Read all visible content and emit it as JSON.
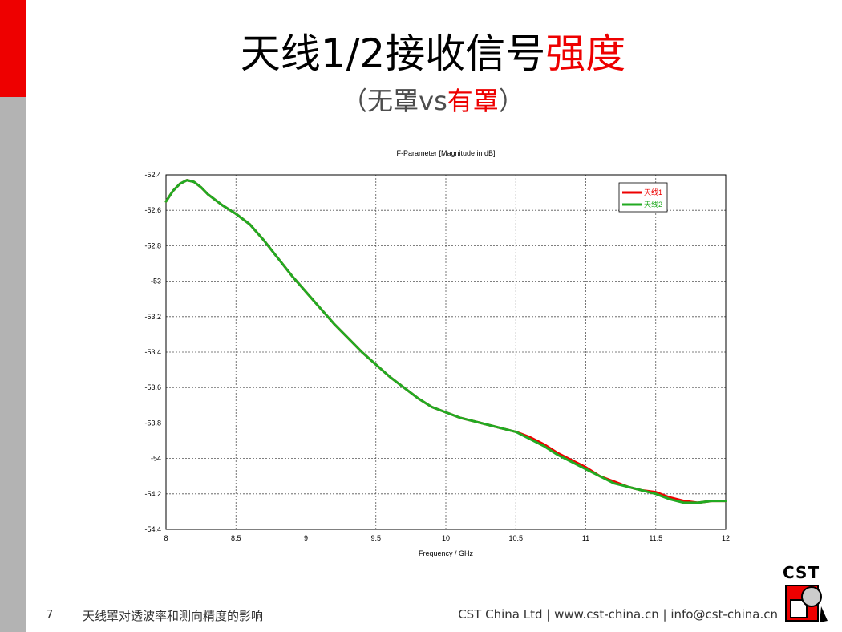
{
  "slide": {
    "title_main": "天线1/2接收信号",
    "title_highlight": "强度",
    "subtitle_open": "（",
    "subtitle_plain": "无罩vs",
    "subtitle_highlight": "有罩",
    "subtitle_close": "）",
    "page_number": "7",
    "footer_left": "天线罩对透波率和测向精度的影响",
    "footer_right": "CST China Ltd | www.cst-china.cn | info@cst-china.cn",
    "logo_text": "CST"
  },
  "colors": {
    "accent_red": "#ee0000",
    "sidebar_gray": "#b3b3b3",
    "series_1": "#ee0000",
    "series_2": "#22aa22"
  },
  "chart_data": {
    "type": "line",
    "title": "F-Parameter [Magnitude in dB]",
    "xlabel": "Frequency / GHz",
    "ylabel": "",
    "xlim": [
      8,
      12
    ],
    "ylim": [
      -54.4,
      -52.4
    ],
    "xticks": [
      8,
      8.5,
      9,
      9.5,
      10,
      10.5,
      11,
      11.5,
      12
    ],
    "xtick_labels": [
      "8",
      "8.5",
      "9",
      "9.5",
      "10",
      "10.5",
      "11",
      "11.5",
      "12"
    ],
    "yticks": [
      -52.4,
      -52.6,
      -52.8,
      -53,
      -53.2,
      -53.4,
      -53.6,
      -53.8,
      -54,
      -54.2,
      -54.4
    ],
    "ytick_labels": [
      "-52.4",
      "-52.6",
      "-52.8",
      "-53",
      "-53.2",
      "-53.4",
      "-53.6",
      "-53.8",
      "-54",
      "-54.2",
      "-54.4"
    ],
    "grid": true,
    "legend_position": "top-right",
    "series": [
      {
        "name": "天线1",
        "color": "#ee0000",
        "x": [
          8.0,
          8.05,
          8.1,
          8.15,
          8.2,
          8.25,
          8.3,
          8.4,
          8.5,
          8.6,
          8.7,
          8.8,
          8.9,
          9.0,
          9.1,
          9.2,
          9.3,
          9.4,
          9.5,
          9.6,
          9.7,
          9.8,
          9.9,
          10.0,
          10.1,
          10.2,
          10.3,
          10.4,
          10.5,
          10.6,
          10.7,
          10.8,
          10.9,
          11.0,
          11.1,
          11.2,
          11.3,
          11.4,
          11.5,
          11.6,
          11.7,
          11.8,
          11.9,
          12.0
        ],
        "y": [
          -52.55,
          -52.49,
          -52.45,
          -52.43,
          -52.44,
          -52.47,
          -52.51,
          -52.57,
          -52.62,
          -52.68,
          -52.77,
          -52.87,
          -52.97,
          -53.06,
          -53.15,
          -53.24,
          -53.32,
          -53.4,
          -53.47,
          -53.54,
          -53.6,
          -53.66,
          -53.71,
          -53.74,
          -53.77,
          -53.79,
          -53.81,
          -53.83,
          -53.85,
          -53.88,
          -53.92,
          -53.97,
          -54.01,
          -54.05,
          -54.1,
          -54.13,
          -54.16,
          -54.18,
          -54.19,
          -54.22,
          -54.24,
          -54.25,
          -54.24,
          -54.24
        ]
      },
      {
        "name": "天线2",
        "color": "#22aa22",
        "x": [
          8.0,
          8.05,
          8.1,
          8.15,
          8.2,
          8.25,
          8.3,
          8.4,
          8.5,
          8.6,
          8.7,
          8.8,
          8.9,
          9.0,
          9.1,
          9.2,
          9.3,
          9.4,
          9.5,
          9.6,
          9.7,
          9.8,
          9.9,
          10.0,
          10.1,
          10.2,
          10.3,
          10.4,
          10.5,
          10.6,
          10.7,
          10.8,
          10.9,
          11.0,
          11.1,
          11.2,
          11.3,
          11.4,
          11.5,
          11.6,
          11.7,
          11.8,
          11.9,
          12.0
        ],
        "y": [
          -52.55,
          -52.49,
          -52.45,
          -52.43,
          -52.44,
          -52.47,
          -52.51,
          -52.57,
          -52.62,
          -52.68,
          -52.77,
          -52.87,
          -52.97,
          -53.06,
          -53.15,
          -53.24,
          -53.32,
          -53.4,
          -53.47,
          -53.54,
          -53.6,
          -53.66,
          -53.71,
          -53.74,
          -53.77,
          -53.79,
          -53.81,
          -53.83,
          -53.85,
          -53.89,
          -53.93,
          -53.98,
          -54.02,
          -54.06,
          -54.1,
          -54.14,
          -54.16,
          -54.18,
          -54.2,
          -54.23,
          -54.25,
          -54.25,
          -54.24,
          -54.24
        ]
      }
    ]
  }
}
